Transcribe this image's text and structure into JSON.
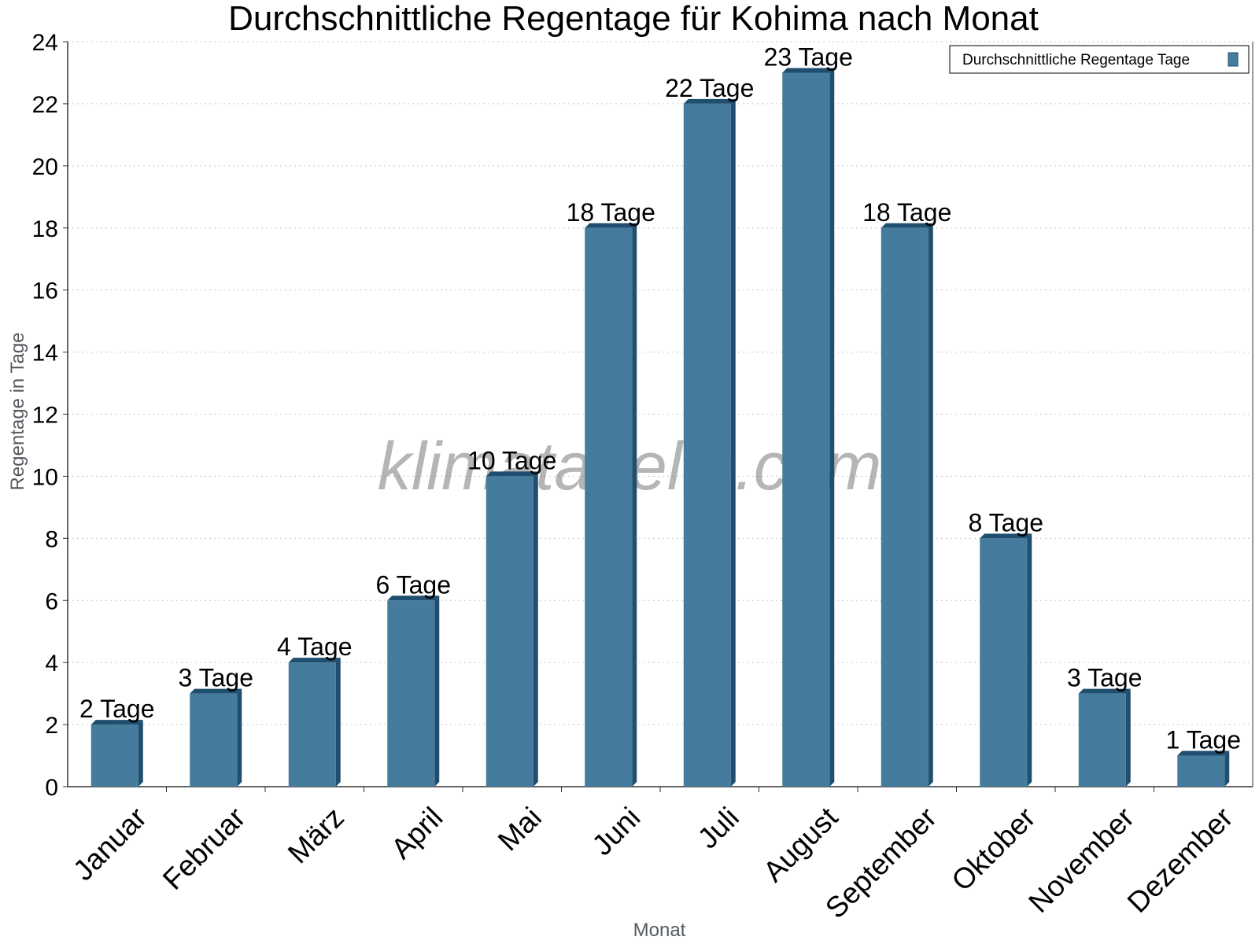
{
  "chart_data": {
    "type": "bar",
    "title": "Durchschnittliche Regentage für Kohima nach Monat",
    "xlabel": "Monat",
    "ylabel": "Regentage in Tage",
    "ylim": [
      0,
      24
    ],
    "yticks": [
      0,
      2,
      4,
      6,
      8,
      10,
      12,
      14,
      16,
      18,
      20,
      22,
      24
    ],
    "grid": true,
    "legend_position": "top-right",
    "categories": [
      "Januar",
      "Februar",
      "März",
      "April",
      "Mai",
      "Juni",
      "Juli",
      "August",
      "September",
      "Oktober",
      "November",
      "Dezember"
    ],
    "series": [
      {
        "name": "Durchschnittliche Regentage Tage",
        "values": [
          2,
          3,
          4,
          6,
          10,
          18,
          22,
          23,
          18,
          8,
          3,
          1
        ],
        "labels": [
          "2 Tage",
          "3 Tage",
          "4 Tage",
          "6 Tage",
          "10 Tage",
          "18 Tage",
          "22 Tage",
          "23 Tage",
          "18 Tage",
          "8 Tage",
          "3 Tage",
          "1 Tage"
        ],
        "color": "#457b9d",
        "side_color": "#1f4e6e"
      }
    ],
    "watermark": "klimatabelle.com"
  }
}
